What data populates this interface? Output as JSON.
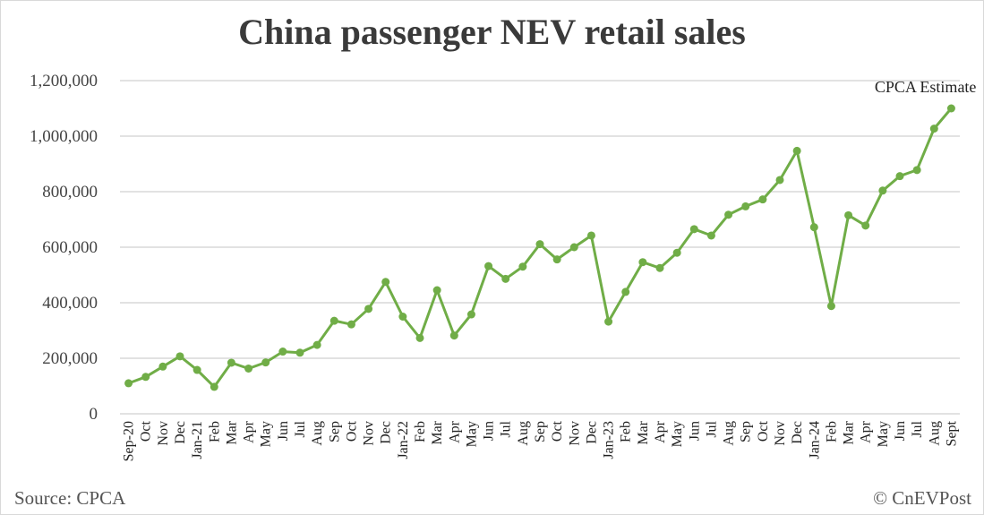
{
  "title": "China passenger NEV retail sales",
  "source": "Source: CPCA",
  "credit": "© CnEVPost",
  "colors": {
    "line": "#70ad47",
    "grid": "#d9d9d9"
  },
  "chart_data": {
    "type": "line",
    "title": "China passenger NEV retail sales",
    "xlabel": "",
    "ylabel": "",
    "ylim": [
      0,
      1200000
    ],
    "yticks": [
      0,
      200000,
      400000,
      600000,
      800000,
      1000000,
      1200000
    ],
    "ytick_labels": [
      "0",
      "200,000",
      "400,000",
      "600,000",
      "800,000",
      "1,000,000",
      "1,200,000"
    ],
    "grid": "horizontal",
    "legend": "none",
    "categories": [
      "Sep-20",
      "Oct",
      "Nov",
      "Dec",
      "Jan-21",
      "Feb",
      "Mar",
      "Apr",
      "May",
      "Jun",
      "Jul",
      "Aug",
      "Sep",
      "Oct",
      "Nov",
      "Dec",
      "Jan-22",
      "Feb",
      "Mar",
      "Apr",
      "May",
      "Jun",
      "Jul",
      "Aug",
      "Sep",
      "Oct",
      "Nov",
      "Dec",
      "Jan-23",
      "Feb",
      "Mar",
      "Apr",
      "May",
      "Jun",
      "Jul",
      "Aug",
      "Sep",
      "Oct",
      "Nov",
      "Dec",
      "Jan-24",
      "Feb",
      "Mar",
      "Apr",
      "May",
      "Jun",
      "Jul",
      "Aug",
      "Sept"
    ],
    "series": [
      {
        "values": [
          110000,
          133000,
          170000,
          207000,
          158000,
          97000,
          184000,
          163000,
          185000,
          224000,
          220000,
          248000,
          335000,
          322000,
          378000,
          475000,
          350000,
          273000,
          445000,
          282000,
          358000,
          532000,
          486000,
          530000,
          611000,
          556000,
          600000,
          642000,
          332000,
          439000,
          546000,
          525000,
          580000,
          665000,
          642000,
          717000,
          747000,
          772000,
          842000,
          947000,
          672000,
          388000,
          715000,
          678000,
          804000,
          856000,
          878000,
          1027000,
          1100000
        ]
      }
    ],
    "annotations": [
      {
        "text": "CPCA Estimate",
        "category": "Sept"
      }
    ]
  }
}
